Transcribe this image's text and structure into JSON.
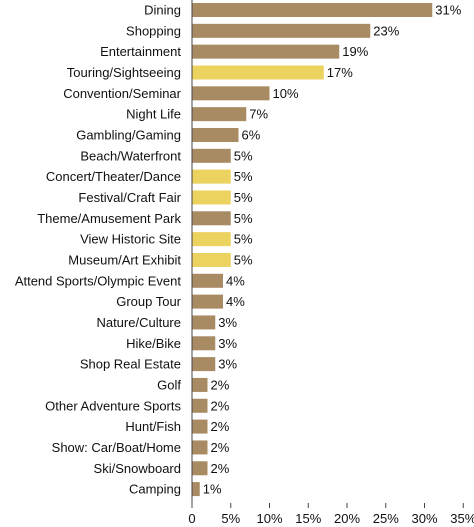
{
  "chart_data": {
    "type": "bar",
    "orientation": "horizontal",
    "title": "",
    "xlabel": "",
    "ylabel": "",
    "xlim": [
      0,
      35
    ],
    "x_ticks": [
      0,
      5,
      10,
      15,
      20,
      25,
      30,
      35
    ],
    "x_tick_labels": [
      "0",
      "5%",
      "10%",
      "15%",
      "20%",
      "25%",
      "30%",
      "35%"
    ],
    "grid": false,
    "legend": "none",
    "colors": {
      "default": "#a88b63",
      "highlight": "#ecd25f"
    },
    "categories": [
      "Dining",
      "Shopping",
      "Entertainment",
      "Touring/Sightseeing",
      "Convention/Seminar",
      "Night Life",
      "Gambling/Gaming",
      "Beach/Waterfront",
      "Concert/Theater/Dance",
      "Festival/Craft Fair",
      "Theme/Amusement Park",
      "View Historic Site",
      "Museum/Art Exhibit",
      "Attend Sports/Olympic Event",
      "Group Tour",
      "Nature/Culture",
      "Hike/Bike",
      "Shop Real Estate",
      "Golf",
      "Other Adventure Sports",
      "Hunt/Fish",
      "Show: Car/Boat/Home",
      "Ski/Snowboard",
      "Camping"
    ],
    "values": [
      31,
      23,
      19,
      17,
      10,
      7,
      6,
      5,
      5,
      5,
      5,
      5,
      5,
      4,
      4,
      3,
      3,
      3,
      2,
      2,
      2,
      2,
      2,
      1
    ],
    "value_labels": [
      "31%",
      "23%",
      "19%",
      "17%",
      "10%",
      "7%",
      "6%",
      "5%",
      "5%",
      "5%",
      "5%",
      "5%",
      "5%",
      "4%",
      "4%",
      "3%",
      "3%",
      "3%",
      "2%",
      "2%",
      "2%",
      "2%",
      "2%",
      "1%"
    ],
    "highlighted": [
      false,
      false,
      false,
      true,
      false,
      false,
      false,
      false,
      true,
      true,
      false,
      true,
      true,
      false,
      false,
      false,
      false,
      false,
      false,
      false,
      false,
      false,
      false,
      false
    ]
  }
}
